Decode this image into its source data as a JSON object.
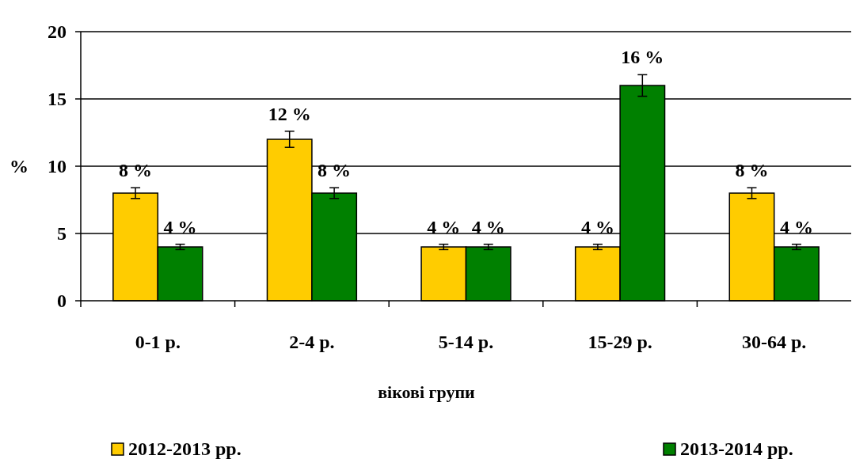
{
  "chart_data": {
    "type": "bar",
    "xlabel": "вікові групи",
    "ylabel": "%",
    "categories": [
      "0-1 р.",
      "2-4 р.",
      "5-14 р.",
      "15-29 р.",
      "30-64 р."
    ],
    "series": [
      {
        "name": "2012-2013 рр.",
        "color": "#ffcc00",
        "values": [
          8,
          12,
          4,
          4,
          8
        ],
        "errors": [
          0.4,
          0.6,
          0.2,
          0.2,
          0.4
        ],
        "value_labels": [
          "8 %",
          "12 %",
          "4 %",
          "4 %",
          "8 %"
        ]
      },
      {
        "name": "2013-2014 рр.",
        "color": "#008000",
        "values": [
          4,
          8,
          4,
          16,
          4
        ],
        "errors": [
          0.2,
          0.4,
          0.2,
          0.8,
          0.2
        ],
        "value_labels": [
          "4 %",
          "8 %",
          "4 %",
          "16 %",
          "4 %"
        ]
      }
    ],
    "ylim": [
      0,
      20
    ],
    "yticks": [
      0,
      5,
      10,
      15,
      20
    ],
    "grid": "y",
    "legend": "bottom"
  }
}
